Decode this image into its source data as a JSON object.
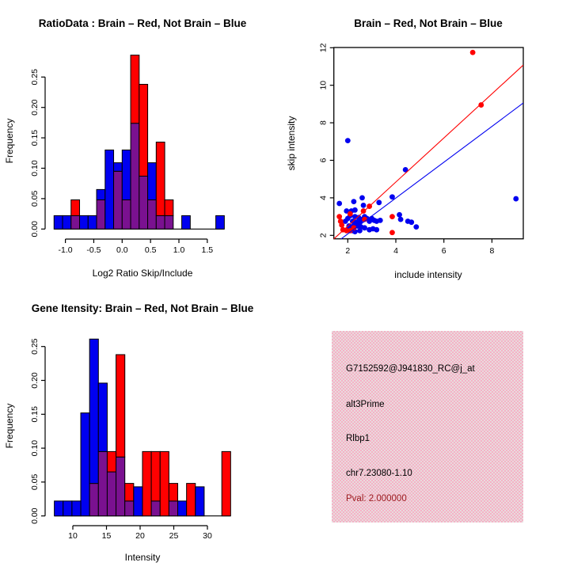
{
  "colors": {
    "red": "#ff0000",
    "blue": "#0000f0",
    "overlap_purple": "#7a1190",
    "axis_black": "#000000",
    "info_panel_pink": "#eec9d3",
    "pval_dark_red": "#9b1c20",
    "background": "#ffffff"
  },
  "chart_data": [
    {
      "id": "ratio_histogram",
      "type": "bar",
      "title": "RatioData : Brain – Red, Not Brain – Blue",
      "xlabel": "Log2 Ratio Skip/Include",
      "ylabel": "Frequency",
      "x_ticks": [
        "-1.0",
        "-0.5",
        "0.0",
        "0.5",
        "1.0",
        "1.5"
      ],
      "y_ticks": [
        "0.00",
        "0.05",
        "0.10",
        "0.15",
        "0.20",
        "0.25"
      ],
      "bin_start": -1.2,
      "bin_width": 0.15,
      "ylim": [
        0,
        0.2857
      ],
      "legend_note": "overlapping histograms, purple where red and blue overlap",
      "series": [
        {
          "name": "Not Brain",
          "color_key": "blue",
          "values": [
            0.022,
            0.022,
            0.022,
            0.022,
            0.022,
            0.065,
            0.13,
            0.109,
            0.13,
            0.174,
            0.087,
            0.109,
            0.022,
            0.022,
            0,
            0.022,
            0,
            0,
            0,
            0.022
          ]
        },
        {
          "name": "Brain",
          "color_key": "red",
          "values": [
            0,
            0,
            0.048,
            0,
            0,
            0.048,
            0,
            0.095,
            0.048,
            0.286,
            0.238,
            0.048,
            0.143,
            0.048,
            0,
            0,
            0,
            0,
            0,
            0
          ]
        }
      ]
    },
    {
      "id": "intensity_scatter",
      "type": "scatter",
      "title": "Brain – Red, Not Brain – Blue",
      "xlabel": "include intensity",
      "ylabel": "skip intensity",
      "x_ticks": [
        "2",
        "4",
        "6",
        "8"
      ],
      "y_ticks": [
        "2",
        "4",
        "6",
        "8",
        "10",
        "12"
      ],
      "xlim": [
        1.42,
        9.3
      ],
      "ylim": [
        1.81,
        12.02
      ],
      "series": [
        {
          "name": "Not Brain",
          "color_key": "blue",
          "points": [
            [
              1.65,
              3.7
            ],
            [
              2.0,
              7.05
            ],
            [
              2.25,
              3.8
            ],
            [
              2.3,
              3.35
            ],
            [
              1.95,
              3.3
            ],
            [
              2.15,
              3.3
            ],
            [
              2.6,
              4.0
            ],
            [
              2.65,
              3.6
            ],
            [
              2.1,
              3.05
            ],
            [
              2.3,
              3.0
            ],
            [
              2.45,
              2.95
            ],
            [
              2.0,
              2.9
            ],
            [
              1.9,
              2.75
            ],
            [
              2.2,
              2.75
            ],
            [
              2.35,
              2.7
            ],
            [
              2.5,
              2.7
            ],
            [
              2.6,
              2.85
            ],
            [
              2.7,
              3.0
            ],
            [
              2.8,
              2.9
            ],
            [
              2.9,
              2.75
            ],
            [
              3.0,
              2.9
            ],
            [
              3.1,
              2.8
            ],
            [
              3.2,
              2.75
            ],
            [
              3.35,
              2.8
            ],
            [
              2.05,
              2.5
            ],
            [
              2.15,
              2.45
            ],
            [
              2.25,
              2.5
            ],
            [
              2.4,
              2.5
            ],
            [
              2.55,
              2.45
            ],
            [
              2.0,
              2.3
            ],
            [
              2.2,
              2.25
            ],
            [
              2.3,
              2.2
            ],
            [
              2.5,
              2.25
            ],
            [
              2.7,
              2.4
            ],
            [
              2.9,
              2.3
            ],
            [
              3.05,
              2.35
            ],
            [
              3.2,
              2.3
            ],
            [
              3.3,
              3.75
            ],
            [
              3.85,
              4.05
            ],
            [
              4.15,
              3.1
            ],
            [
              4.2,
              2.85
            ],
            [
              4.4,
              5.5
            ],
            [
              4.5,
              2.75
            ],
            [
              4.65,
              2.7
            ],
            [
              4.85,
              2.45
            ],
            [
              9.0,
              3.95
            ]
          ]
        },
        {
          "name": "Brain",
          "color_key": "red",
          "points": [
            [
              1.65,
              3.0
            ],
            [
              1.7,
              2.75
            ],
            [
              1.75,
              2.55
            ],
            [
              1.8,
              2.3
            ],
            [
              1.95,
              2.25
            ],
            [
              2.1,
              2.25
            ],
            [
              2.1,
              3.15
            ],
            [
              2.25,
              2.4
            ],
            [
              2.65,
              3.3
            ],
            [
              2.7,
              2.85
            ],
            [
              2.9,
              3.55
            ],
            [
              3.85,
              3.0
            ],
            [
              3.85,
              2.15
            ],
            [
              7.2,
              11.75
            ],
            [
              7.55,
              8.95
            ]
          ]
        }
      ],
      "fit_lines": [
        {
          "name": "brain-fit",
          "color_key": "red",
          "x1": 1.42,
          "y1": 1.81,
          "x2": 9.3,
          "y2": 11.07
        },
        {
          "name": "not-brain-fit",
          "color_key": "blue",
          "x1": 1.72,
          "y1": 1.81,
          "x2": 9.3,
          "y2": 9.05
        }
      ]
    },
    {
      "id": "gene_intensity_histogram",
      "type": "bar",
      "title": "Gene Itensity: Brain – Red, Not Brain – Blue",
      "xlabel": "Intensity",
      "ylabel": "Frequency",
      "x_ticks": [
        "10",
        "15",
        "20",
        "25",
        "30"
      ],
      "y_ticks": [
        "0.00",
        "0.05",
        "0.10",
        "0.15",
        "0.20",
        "0.25"
      ],
      "bin_start": 7.25,
      "bin_width": 1.31,
      "ylim": [
        0,
        0.261
      ],
      "legend_note": "overlapping histograms, purple where red and blue overlap",
      "series": [
        {
          "name": "Not Brain",
          "color_key": "blue",
          "values": [
            0.022,
            0.022,
            0.022,
            0.152,
            0.261,
            0.196,
            0.065,
            0.087,
            0.022,
            0.043,
            0,
            0.022,
            0,
            0.022,
            0.022,
            0,
            0.043,
            0,
            0,
            0
          ]
        },
        {
          "name": "Brain",
          "color_key": "red",
          "values": [
            0,
            0,
            0,
            0,
            0.048,
            0.095,
            0.095,
            0.238,
            0.048,
            0,
            0.095,
            0.095,
            0.095,
            0.048,
            0,
            0.048,
            0,
            0,
            0,
            0.095
          ]
        }
      ]
    }
  ],
  "info_panel": {
    "probe_id": "G7152592@J941830_RC@j_at",
    "splice_type": "alt3Prime",
    "gene": "Rlbp1",
    "location": "chr7.23080-1.10",
    "pval": "Pval: 2.000000"
  }
}
